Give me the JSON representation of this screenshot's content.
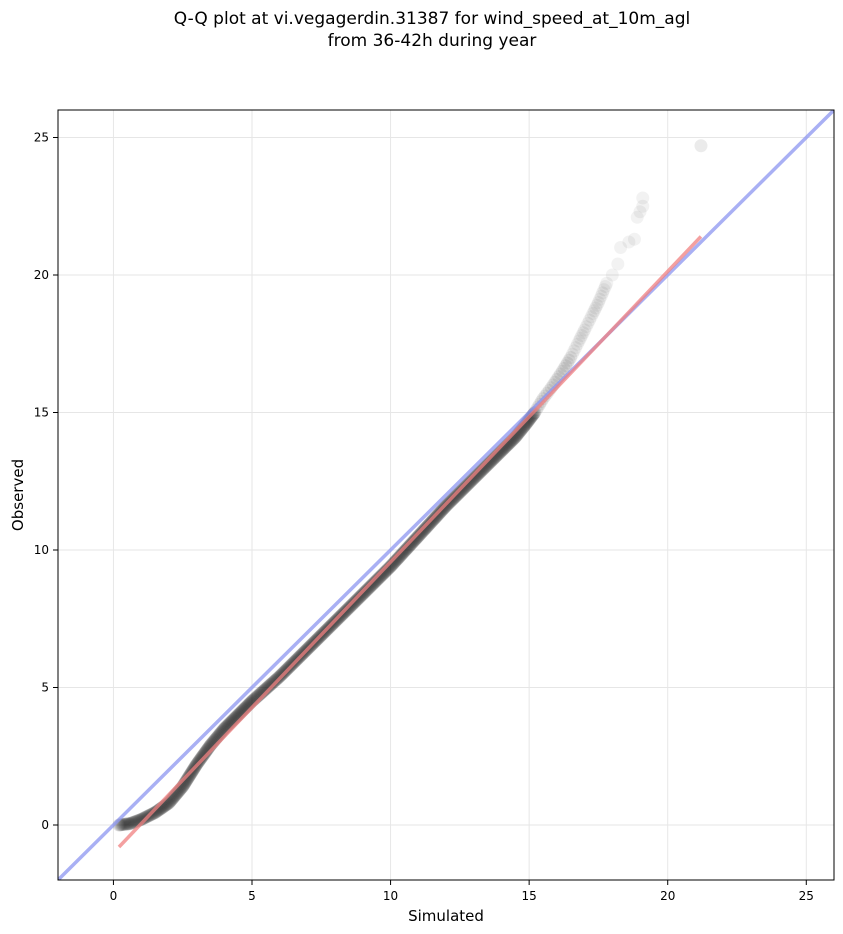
{
  "chart_data": {
    "type": "scatter",
    "title_line1": "Q-Q plot at vi.vegagerdin.31387 for wind_speed_at_10m_agl",
    "title_line2": "from 36-42h during year",
    "xlabel": "Simulated",
    "ylabel": "Observed",
    "xlim": [
      -2,
      26
    ],
    "ylim": [
      -2,
      26
    ],
    "xticks": [
      0,
      5,
      10,
      15,
      20,
      25
    ],
    "yticks": [
      0,
      5,
      10,
      15,
      20,
      25
    ],
    "grid": true,
    "quantile_curve": [
      [
        0.2,
        0.0
      ],
      [
        0.6,
        0.05
      ],
      [
        1.0,
        0.2
      ],
      [
        1.5,
        0.45
      ],
      [
        2.0,
        0.8
      ],
      [
        2.5,
        1.4
      ],
      [
        3.0,
        2.2
      ],
      [
        3.5,
        2.9
      ],
      [
        4.0,
        3.5
      ],
      [
        4.5,
        4.0
      ],
      [
        5.0,
        4.5
      ],
      [
        6.0,
        5.4
      ],
      [
        7.0,
        6.4
      ],
      [
        8.0,
        7.4
      ],
      [
        9.0,
        8.4
      ],
      [
        10.0,
        9.4
      ],
      [
        11.0,
        10.5
      ],
      [
        12.0,
        11.6
      ],
      [
        13.0,
        12.6
      ],
      [
        14.0,
        13.6
      ],
      [
        14.5,
        14.1
      ],
      [
        14.9,
        14.6
      ],
      [
        15.2,
        15.0
      ],
      [
        15.5,
        15.5
      ],
      [
        15.8,
        15.9
      ],
      [
        16.0,
        16.2
      ],
      [
        16.2,
        16.5
      ],
      [
        16.5,
        17.0
      ],
      [
        16.8,
        17.6
      ],
      [
        17.0,
        18.0
      ],
      [
        17.3,
        18.6
      ],
      [
        17.5,
        19.0
      ],
      [
        17.8,
        19.7
      ],
      [
        18.0,
        20.0
      ],
      [
        18.2,
        20.4
      ],
      [
        18.3,
        21.0
      ],
      [
        18.6,
        21.2
      ],
      [
        18.8,
        21.3
      ],
      [
        18.9,
        22.1
      ],
      [
        19.0,
        22.3
      ],
      [
        19.1,
        22.5
      ],
      [
        19.1,
        22.8
      ],
      [
        21.2,
        24.7
      ]
    ],
    "regression_line": {
      "x": [
        0.2,
        21.2
      ],
      "y": [
        -0.8,
        21.4
      ]
    },
    "identity_line": {
      "x": [
        -2,
        26
      ],
      "y": [
        -2,
        26
      ]
    },
    "colors": {
      "points": "#000000",
      "regression": "#f08080",
      "identity": "#8c96f0",
      "grid": "#e6e6e6"
    }
  }
}
